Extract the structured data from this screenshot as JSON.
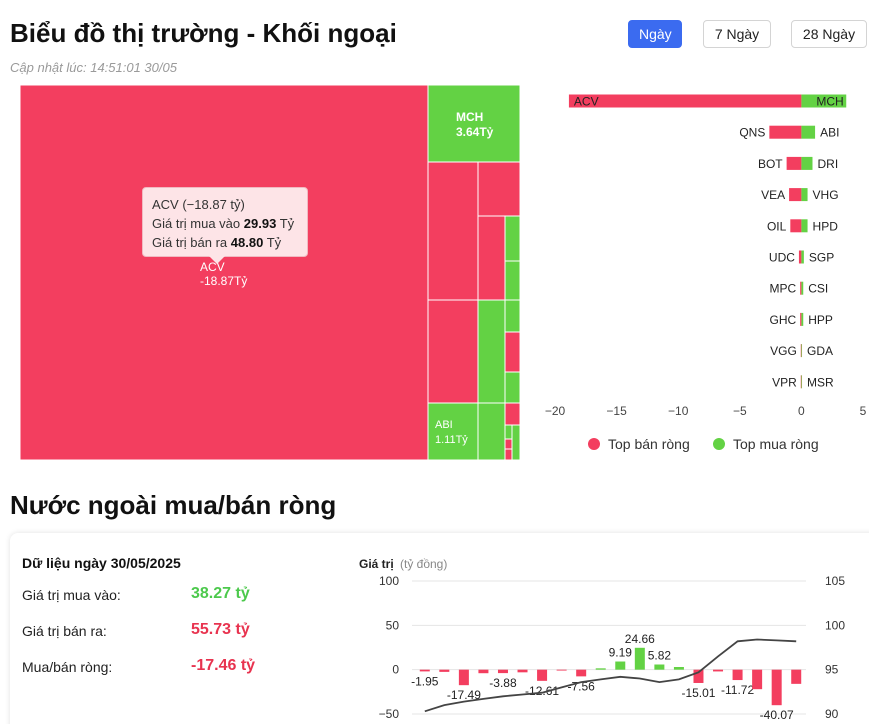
{
  "header": {
    "title": "Biểu đồ thị trường - Khối ngoại",
    "updated": "Cập nhật lúc: 14:51:01 30/05",
    "periods": [
      "Ngày",
      "7 Ngày",
      "28 Ngày"
    ],
    "active_period": "Ngày"
  },
  "colors": {
    "sell": "#f33e5f",
    "buy": "#63d244",
    "accent": "#3b6bf0",
    "line": "#444444"
  },
  "tooltip": {
    "title": "ACV (−18.87 tỷ)",
    "buy_label": "Giá trị mua vào",
    "buy_value": "29.93",
    "sell_label": "Giá trị bán ra",
    "sell_value": "48.80",
    "unit": "Tỷ"
  },
  "treemap": {
    "labels": [
      {
        "ticker": "ACV",
        "value": "-18.87Tỷ"
      },
      {
        "ticker": "MCH",
        "value": "3.64Tỷ"
      },
      {
        "ticker": "ABI",
        "value": "1.11Tỷ"
      }
    ]
  },
  "chart_data": [
    {
      "type": "bar",
      "orientation": "horizontal",
      "series": [
        {
          "name": "Top bán ròng",
          "categories": [
            "ACV",
            "QNS",
            "BOT",
            "VEA",
            "OIL",
            "UDC",
            "MPC",
            "GHC",
            "VGG",
            "VPR"
          ],
          "values": [
            -18.87,
            -2.6,
            -1.2,
            -1.0,
            -0.9,
            -0.2,
            -0.1,
            -0.1,
            -0.05,
            -0.05
          ]
        },
        {
          "name": "Top mua ròng",
          "categories": [
            "MCH",
            "ABI",
            "DRI",
            "VHG",
            "HPD",
            "SGP",
            "CSI",
            "HPP",
            "GDA",
            "MSR"
          ],
          "values": [
            3.64,
            1.11,
            0.9,
            0.5,
            0.5,
            0.2,
            0.15,
            0.15,
            0.05,
            0.05
          ]
        }
      ],
      "x_ticks": [
        "−20",
        "−15",
        "−10",
        "−5",
        "0",
        "5"
      ],
      "xlim": [
        -20,
        5
      ],
      "legend": [
        "Top bán ròng",
        "Top mua ròng"
      ],
      "legend_position": "bottom"
    },
    {
      "type": "bar",
      "title": "Nước ngoài mua/bán ròng",
      "date_label": "Dữ liệu ngày 30/05/2025",
      "stats": [
        {
          "label": "Giá trị mua vào:",
          "value": "38.27 tỷ"
        },
        {
          "label": "Giá trị bán ra:",
          "value": "55.73 tỷ"
        },
        {
          "label": "Mua/bán ròng:",
          "value": "-17.46 tỷ"
        }
      ],
      "ylabel": "Giá trị",
      "ylabel_unit": "(tỷ đồng)",
      "ylim_left": [
        -50,
        100
      ],
      "y_ticks_left": [
        "100",
        "50",
        "0",
        "−50"
      ],
      "ylim_right": [
        90,
        105
      ],
      "y_ticks_right": [
        "105",
        "100",
        "95",
        "90"
      ],
      "values": [
        -1.95,
        -2.5,
        -17.49,
        -4.0,
        -3.88,
        -3.0,
        -12.61,
        -1.0,
        -7.56,
        1.5,
        9.19,
        24.66,
        5.82,
        3.0,
        -15.01,
        -2.0,
        -11.72,
        -22.0,
        -40.07,
        -16.0
      ],
      "value_labels": [
        "-1.95",
        "",
        "-17.49",
        "",
        "-3.88",
        "",
        "-12.61",
        "",
        "-7.56",
        "",
        "9.19",
        "24.66",
        "5.82",
        "",
        "-15.01",
        "",
        "-11.72",
        "",
        "-40.07",
        ""
      ],
      "line_values": [
        90.3,
        91.0,
        91.4,
        91.7,
        92.0,
        92.2,
        92.4,
        93.0,
        93.6,
        93.9,
        94.2,
        94.0,
        93.6,
        93.9,
        94.7,
        96.5,
        98.2,
        98.4,
        98.3,
        98.2
      ]
    }
  ]
}
